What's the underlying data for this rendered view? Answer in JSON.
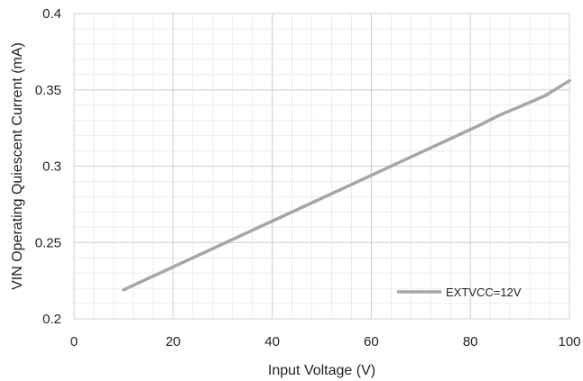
{
  "chart_data": {
    "type": "line",
    "title": "",
    "xlabel": "Input Voltage (V)",
    "ylabel": "VIN Operating Quiescent Current (mA)",
    "xlim": [
      0,
      100
    ],
    "ylim": [
      0.2,
      0.4
    ],
    "x_ticks": [
      "0",
      "20",
      "40",
      "60",
      "80",
      "100"
    ],
    "y_ticks": [
      "0.2",
      "0.25",
      "0.3",
      "0.35",
      "0.4"
    ],
    "grid": "on (major and minor)",
    "legend_position": "bottom-right, inside plot",
    "series": [
      {
        "name": "EXTVCC=12V",
        "color": "#a6a6a6",
        "x": [
          10,
          20,
          30,
          40,
          50,
          60,
          70,
          80,
          82,
          85,
          87,
          90,
          95,
          100
        ],
        "y": [
          0.219,
          0.234,
          0.249,
          0.264,
          0.279,
          0.294,
          0.309,
          0.324,
          0.327,
          0.332,
          0.335,
          0.339,
          0.346,
          0.356
        ]
      }
    ]
  }
}
